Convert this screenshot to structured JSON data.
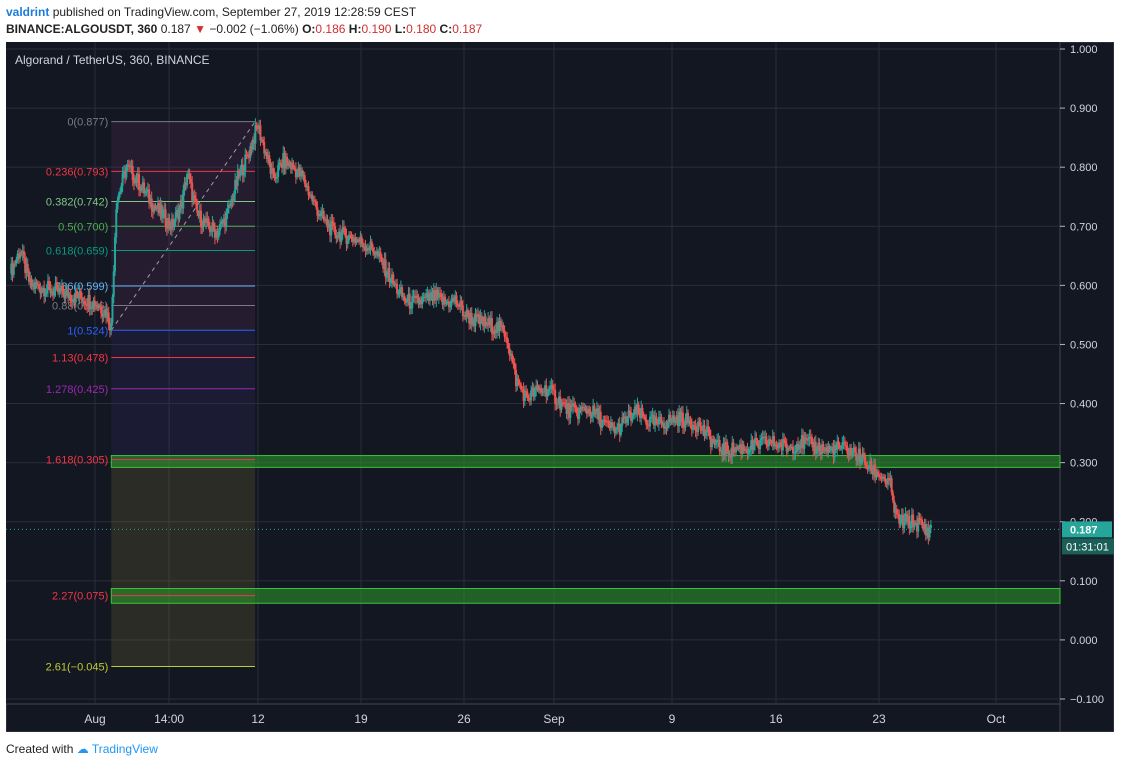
{
  "header": {
    "author": "valdrint",
    "published_text": "published on TradingView.com, September 27, 2019 12:28:59 CEST",
    "symbol": "BINANCE:ALGOUSDT, 360",
    "last": "0.187",
    "change": "−0.002 (−1.06%)",
    "o_label": "O:",
    "o": "0.186",
    "h_label": "H:",
    "h": "0.190",
    "l_label": "L:",
    "l": "0.180",
    "c_label": "C:",
    "c": "0.187"
  },
  "footer": {
    "created_with": "Created with",
    "brand": "TradingView"
  },
  "colors": {
    "background": "#131722",
    "grid": "#2a2e39",
    "up": "#26a69a",
    "down": "#ef5350",
    "zone": "#2e9e2e",
    "price_label": "#26a69a"
  },
  "chart_data": {
    "type": "candlestick",
    "title": "Algorand / TetherUS, 360, BINANCE",
    "y_ticks": [
      "1.000",
      "0.900",
      "0.800",
      "0.700",
      "0.600",
      "0.500",
      "0.400",
      "0.300",
      "0.200",
      "0.100",
      "0.000",
      "−0.100"
    ],
    "x_ticks": [
      {
        "label": "Aug",
        "date": "2019-08-01"
      },
      {
        "label": "14:00",
        "date": "2019-08-06"
      },
      {
        "label": "12",
        "date": "2019-08-12"
      },
      {
        "label": "19",
        "date": "2019-08-19"
      },
      {
        "label": "26",
        "date": "2019-08-26"
      },
      {
        "label": "Sep",
        "date": "2019-09-01"
      },
      {
        "label": "9",
        "date": "2019-09-09"
      },
      {
        "label": "16",
        "date": "2019-09-16"
      },
      {
        "label": "23",
        "date": "2019-09-23"
      },
      {
        "label": "Oct",
        "date": "2019-10-01"
      }
    ],
    "ylim": [
      -0.105,
      1.005
    ],
    "price_line": 0.187,
    "price_label": "0.187",
    "countdown_label": "01:31:01",
    "close_path": [
      [
        0,
        0.62
      ],
      [
        2,
        0.66
      ],
      [
        4,
        0.6
      ],
      [
        7,
        0.595
      ],
      [
        11,
        0.585
      ],
      [
        14,
        0.58
      ],
      [
        17,
        0.57
      ],
      [
        19,
        0.555
      ],
      [
        20,
        0.53
      ],
      [
        21,
        0.74
      ],
      [
        23,
        0.8
      ],
      [
        25,
        0.78
      ],
      [
        28,
        0.74
      ],
      [
        30,
        0.72
      ],
      [
        32,
        0.7
      ],
      [
        34,
        0.74
      ],
      [
        35,
        0.79
      ],
      [
        37,
        0.72
      ],
      [
        39,
        0.7
      ],
      [
        41,
        0.69
      ],
      [
        43,
        0.72
      ],
      [
        45,
        0.78
      ],
      [
        47,
        0.82
      ],
      [
        49,
        0.87
      ],
      [
        50,
        0.84
      ],
      [
        52,
        0.78
      ],
      [
        54,
        0.81
      ],
      [
        56,
        0.8
      ],
      [
        58,
        0.78
      ],
      [
        60,
        0.74
      ],
      [
        62,
        0.71
      ],
      [
        64,
        0.69
      ],
      [
        66,
        0.685
      ],
      [
        68,
        0.68
      ],
      [
        70,
        0.67
      ],
      [
        72,
        0.66
      ],
      [
        74,
        0.63
      ],
      [
        76,
        0.6
      ],
      [
        78,
        0.575
      ],
      [
        80,
        0.57
      ],
      [
        82,
        0.575
      ],
      [
        84,
        0.58
      ],
      [
        86,
        0.57
      ],
      [
        88,
        0.575
      ],
      [
        90,
        0.55
      ],
      [
        92,
        0.54
      ],
      [
        94,
        0.535
      ],
      [
        96,
        0.53
      ],
      [
        98,
        0.52
      ],
      [
        100,
        0.44
      ],
      [
        102,
        0.41
      ],
      [
        104,
        0.42
      ],
      [
        106,
        0.425
      ],
      [
        108,
        0.41
      ],
      [
        110,
        0.39
      ],
      [
        112,
        0.385
      ],
      [
        114,
        0.39
      ],
      [
        116,
        0.38
      ],
      [
        118,
        0.36
      ],
      [
        120,
        0.355
      ],
      [
        122,
        0.375
      ],
      [
        124,
        0.385
      ],
      [
        126,
        0.37
      ],
      [
        128,
        0.365
      ],
      [
        130,
        0.37
      ],
      [
        132,
        0.375
      ],
      [
        134,
        0.37
      ],
      [
        136,
        0.365
      ],
      [
        138,
        0.345
      ],
      [
        140,
        0.325
      ],
      [
        142,
        0.32
      ],
      [
        144,
        0.325
      ],
      [
        146,
        0.325
      ],
      [
        148,
        0.33
      ],
      [
        150,
        0.335
      ],
      [
        152,
        0.33
      ],
      [
        154,
        0.325
      ],
      [
        156,
        0.335
      ],
      [
        158,
        0.33
      ],
      [
        160,
        0.325
      ],
      [
        162,
        0.32
      ],
      [
        164,
        0.325
      ],
      [
        166,
        0.32
      ],
      [
        168,
        0.31
      ],
      [
        170,
        0.29
      ],
      [
        172,
        0.28
      ],
      [
        174,
        0.26
      ],
      [
        175,
        0.21
      ],
      [
        176,
        0.2
      ],
      [
        178,
        0.2
      ],
      [
        180,
        0.195
      ],
      [
        181,
        0.185
      ],
      [
        182,
        0.187
      ]
    ],
    "fib_levels": [
      {
        "label": "0(0.877)",
        "value": 0.877,
        "color": "#787b86"
      },
      {
        "label": "0.236(0.793)",
        "value": 0.793,
        "color": "#f23645"
      },
      {
        "label": "0.382(0.742)",
        "value": 0.742,
        "color": "#81c784"
      },
      {
        "label": "0.5(0.700)",
        "value": 0.7,
        "color": "#4caf50"
      },
      {
        "label": "0.618(0.659)",
        "value": 0.659,
        "color": "#089981"
      },
      {
        "label": "0.786(0.599)",
        "value": 0.599,
        "color": "#64b5f6"
      },
      {
        "label": "0.88(0.566)",
        "value": 0.566,
        "color": "#787b86"
      },
      {
        "label": "1(0.524)",
        "value": 0.524,
        "color": "#2962ff"
      },
      {
        "label": "1.13(0.478)",
        "value": 0.478,
        "color": "#f23645"
      },
      {
        "label": "1.278(0.425)",
        "value": 0.425,
        "color": "#9c27b0"
      },
      {
        "label": "1.618(0.305)",
        "value": 0.305,
        "color": "#f23645"
      },
      {
        "label": "2.27(0.075)",
        "value": 0.075,
        "color": "#f23645"
      },
      {
        "label": "2.61(−0.045)",
        "value": -0.045,
        "color": "#c0ca33"
      }
    ],
    "zones": [
      {
        "low": 0.292,
        "high": 0.312
      },
      {
        "low": 0.062,
        "high": 0.087
      }
    ]
  }
}
